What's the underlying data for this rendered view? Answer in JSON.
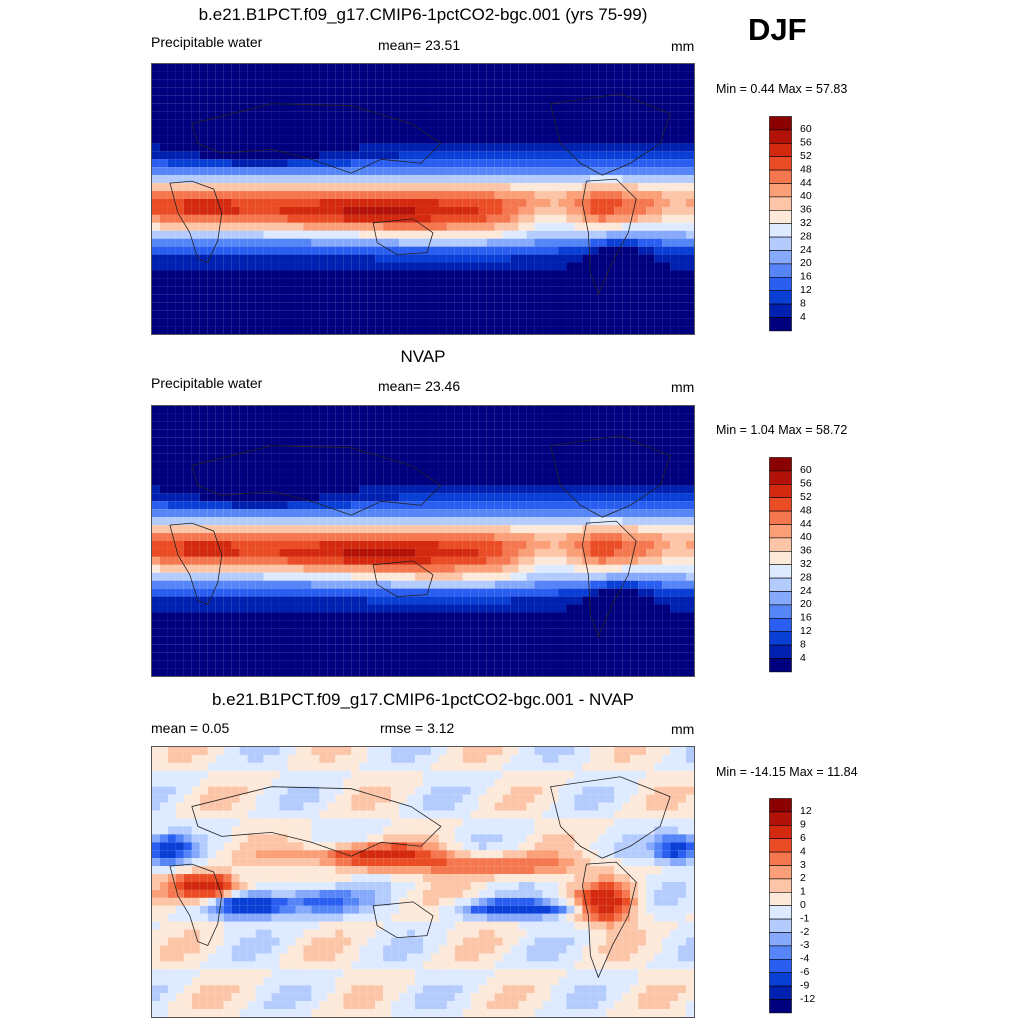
{
  "season": "DJF",
  "colors": {
    "abs_palette": [
      "#00007f",
      "#0020b0",
      "#0a3fd6",
      "#2a5ef0",
      "#5585f7",
      "#86a9fb",
      "#b3ccfd",
      "#ddeaff",
      "#fde9d9",
      "#fcc5a8",
      "#fa9f78",
      "#f5774f",
      "#ea4d26",
      "#d3290f",
      "#b21207",
      "#8b0000"
    ],
    "diff_palette": [
      "#00007f",
      "#0020b0",
      "#0a3fd6",
      "#2a5ef0",
      "#5585f7",
      "#86a9fb",
      "#b3ccfd",
      "#ddeaff",
      "#fde9d9",
      "#fcc5a8",
      "#fa9f78",
      "#f5774f",
      "#ea4d26",
      "#d3290f",
      "#b21207",
      "#8b0000"
    ]
  },
  "chart_data": [
    {
      "type": "heatmap",
      "title": "b.e21.B1PCT.f09_g17.CMIP6-1pctCO2-bgc.001 (yrs 75-99)",
      "left_label": "Precipitable water",
      "center_label": "mean=  23.51",
      "units": "mm",
      "minmax": "Min =   0.44 Max =  57.83",
      "min": 0.44,
      "max": 57.83,
      "mean": 23.51,
      "levels": [
        4,
        8,
        12,
        16,
        20,
        24,
        28,
        32,
        36,
        40,
        44,
        48,
        52,
        56,
        60
      ],
      "colorbar_ticks": [
        "60",
        "56",
        "52",
        "48",
        "44",
        "40",
        "36",
        "32",
        "28",
        "24",
        "20",
        "16",
        "12",
        "8",
        "4"
      ]
    },
    {
      "type": "heatmap",
      "title": "NVAP",
      "left_label": "Precipitable water",
      "center_label": "mean=  23.46",
      "units": "mm",
      "minmax": "Min =   1.04 Max =  58.72",
      "min": 1.04,
      "max": 58.72,
      "mean": 23.46,
      "levels": [
        4,
        8,
        12,
        16,
        20,
        24,
        28,
        32,
        36,
        40,
        44,
        48,
        52,
        56,
        60
      ],
      "colorbar_ticks": [
        "60",
        "56",
        "52",
        "48",
        "44",
        "40",
        "36",
        "32",
        "28",
        "24",
        "20",
        "16",
        "12",
        "8",
        "4"
      ]
    },
    {
      "type": "heatmap",
      "title": "b.e21.B1PCT.f09_g17.CMIP6-1pctCO2-bgc.001 - NVAP",
      "left_label": "mean =   0.05",
      "center_label": "rmse =   3.12",
      "units": "mm",
      "minmax": "Min = -14.15 Max =  11.84",
      "min": -14.15,
      "max": 11.84,
      "mean": 0.05,
      "rmse": 3.12,
      "levels": [
        -12,
        -9,
        -6,
        -4,
        -3,
        -2,
        -1,
        0,
        1,
        2,
        3,
        4,
        6,
        9,
        12
      ],
      "colorbar_ticks": [
        "12",
        "9",
        "6",
        "4",
        "3",
        "2",
        "1",
        "0",
        "-1",
        "-2",
        "-3",
        "-4",
        "-6",
        "-9",
        "-12"
      ]
    }
  ]
}
